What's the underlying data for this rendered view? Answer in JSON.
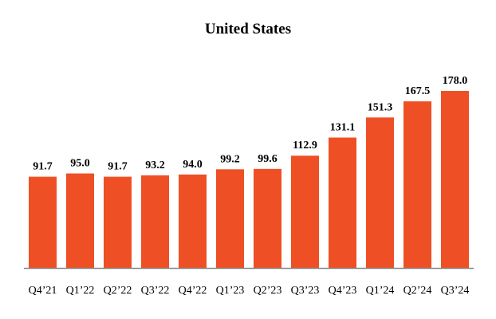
{
  "chart_data": {
    "type": "bar",
    "title": "United States",
    "categories": [
      "Q4’21",
      "Q1’22",
      "Q2’22",
      "Q3’22",
      "Q4’22",
      "Q1’23",
      "Q2’23",
      "Q3’23",
      "Q4’23",
      "Q1’24",
      "Q2’24",
      "Q3’24"
    ],
    "values": [
      91.7,
      95.0,
      91.7,
      93.2,
      94.0,
      99.2,
      99.6,
      112.9,
      131.1,
      151.3,
      167.5,
      178.0
    ],
    "value_labels": [
      "91.7",
      "95.0",
      "91.7",
      "93.2",
      "94.0",
      "99.2",
      "99.6",
      "112.9",
      "131.1",
      "151.3",
      "167.5",
      "178.0"
    ],
    "xlabel": "",
    "ylabel": "",
    "ylim": [
      0,
      178.0
    ],
    "grid": false,
    "legend": "none",
    "bar_color": "#EF4F24",
    "axis_color": "#888888"
  }
}
